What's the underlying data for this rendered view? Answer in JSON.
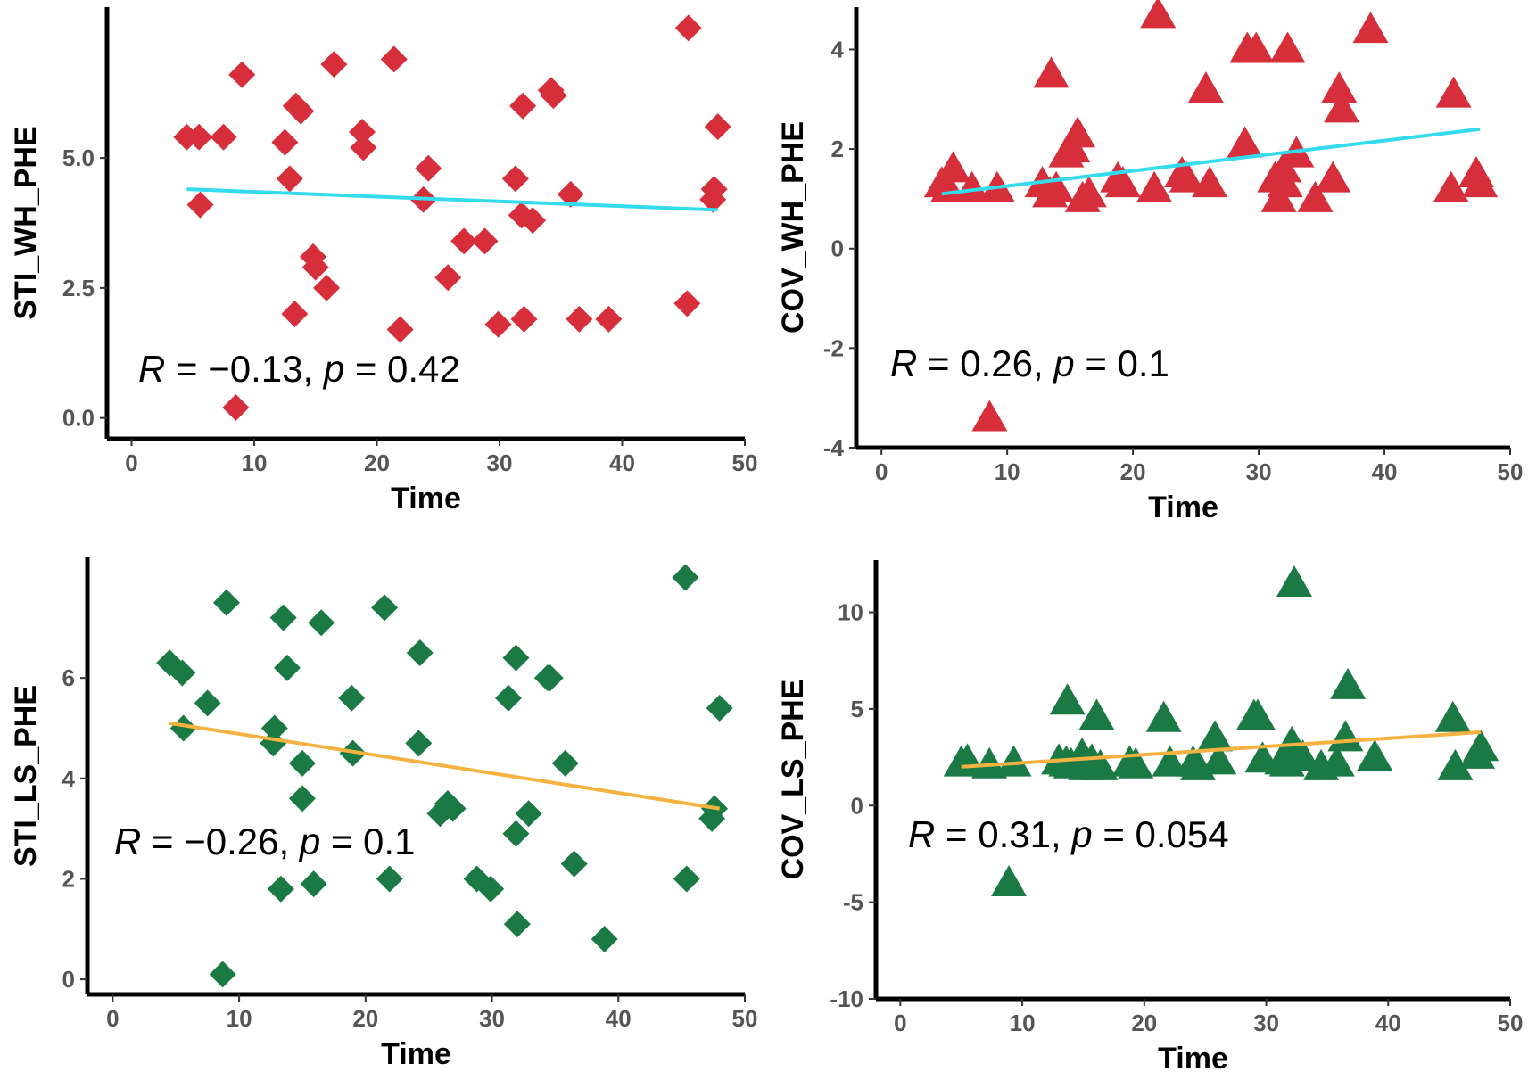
{
  "chart_data": [
    {
      "type": "scatter",
      "panel": "top-left",
      "title": "",
      "xlabel": "Time",
      "ylabel": "STI_WH_PHE",
      "xlim": [
        -2,
        50
      ],
      "ylim": [
        -0.4,
        7.9
      ],
      "xticks": [
        0,
        10,
        20,
        30,
        40,
        50
      ],
      "yticks": [
        0.0,
        2.5,
        5.0
      ],
      "ytick_labels": [
        "0.0",
        "2.5",
        "5.0"
      ],
      "marker": "diamond",
      "point_color": "#d62f3b",
      "line_color": "#33dbec",
      "x": [
        4.5,
        5.5,
        5.6,
        7.5,
        8.5,
        9.0,
        12.5,
        12.9,
        13.3,
        13.4,
        13.8,
        14.8,
        15.0,
        15.9,
        16.5,
        18.8,
        18.9,
        21.4,
        21.9,
        23.8,
        24.2,
        25.8,
        27.1,
        28.8,
        29.9,
        31.3,
        31.8,
        31.9,
        32.0,
        32.7,
        34.2,
        34.4,
        35.8,
        36.5,
        38.9,
        45.3,
        45.4,
        47.4,
        47.5,
        47.8
      ],
      "y": [
        5.4,
        5.4,
        4.1,
        5.4,
        0.2,
        6.6,
        5.3,
        4.6,
        2.0,
        6.0,
        5.9,
        3.1,
        2.9,
        2.5,
        6.8,
        5.5,
        5.2,
        6.9,
        1.7,
        4.2,
        4.8,
        2.7,
        3.4,
        3.4,
        1.8,
        4.6,
        3.9,
        6.0,
        1.9,
        3.8,
        6.3,
        6.2,
        4.3,
        1.9,
        1.9,
        2.2,
        7.5,
        4.2,
        4.4,
        5.6
      ],
      "fit_line": {
        "x": [
          4.5,
          47.8
        ],
        "y": [
          4.4,
          4.0
        ]
      },
      "annotation": {
        "R_label": "R",
        "R_value": " = −0.13, ",
        "p_label": "p",
        "p_value": " = 0.42"
      }
    },
    {
      "type": "scatter",
      "panel": "top-right",
      "title": "",
      "xlabel": "Time",
      "ylabel": "COV_WH_PHE",
      "xlim": [
        -2,
        50
      ],
      "ylim": [
        -4.0,
        4.85
      ],
      "xticks": [
        0,
        10,
        20,
        30,
        40,
        50
      ],
      "yticks": [
        -4,
        -2,
        0,
        2,
        4
      ],
      "ytick_labels": [
        "-4",
        "-2",
        "0",
        "2",
        "4"
      ],
      "marker": "triangle",
      "point_color": "#d62f3b",
      "line_color": "#33dbec",
      "x": [
        4.8,
        5.3,
        5.7,
        7.2,
        8.6,
        9.2,
        12.8,
        13.4,
        13.5,
        13.9,
        14.7,
        15.2,
        15.6,
        16.0,
        16.5,
        18.8,
        19.2,
        21.7,
        22.0,
        23.9,
        24.3,
        25.8,
        26.1,
        28.9,
        29.1,
        29.8,
        31.3,
        31.6,
        32.0,
        32.1,
        32.3,
        33.0,
        34.5,
        35.9,
        36.4,
        36.6,
        38.9,
        45.3,
        45.5,
        47.3,
        47.6
      ],
      "y": [
        1.3,
        1.2,
        1.6,
        1.2,
        -3.4,
        1.2,
        1.3,
        1.1,
        3.5,
        1.2,
        1.9,
        2.0,
        2.3,
        1.0,
        1.1,
        1.4,
        1.3,
        1.2,
        4.7,
        1.5,
        1.4,
        3.2,
        1.3,
        2.1,
        4.0,
        4.0,
        1.4,
        1.0,
        1.6,
        1.3,
        4.0,
        1.9,
        1.0,
        1.4,
        3.2,
        2.8,
        4.4,
        1.2,
        3.1,
        1.5,
        1.3
      ],
      "fit_line": {
        "x": [
          4.8,
          47.6
        ],
        "y": [
          1.1,
          2.4
        ]
      },
      "annotation": {
        "R_label": "R",
        "R_value": " = 0.26, ",
        "p_label": "p",
        "p_value": " = 0.1"
      }
    },
    {
      "type": "scatter",
      "panel": "bottom-left",
      "title": "",
      "xlabel": "Time",
      "ylabel": "STI_LS_PHE",
      "xlim": [
        -2,
        50
      ],
      "ylim": [
        -0.3,
        8.4
      ],
      "xticks": [
        0,
        10,
        20,
        30,
        40,
        50
      ],
      "yticks": [
        0,
        2,
        4,
        6
      ],
      "ytick_labels": [
        "0",
        "2",
        "4",
        "6"
      ],
      "marker": "diamond",
      "point_color": "#1b7a43",
      "line_color": "#f5b240",
      "x": [
        4.5,
        5.5,
        5.6,
        7.5,
        8.7,
        9.0,
        12.7,
        12.8,
        13.3,
        13.5,
        13.8,
        15.0,
        15.0,
        15.9,
        16.5,
        18.9,
        19.0,
        21.5,
        21.9,
        24.2,
        24.3,
        25.9,
        26.5,
        26.9,
        28.8,
        29.9,
        31.3,
        31.9,
        31.9,
        32.0,
        32.9,
        34.4,
        34.6,
        35.8,
        36.5,
        38.9,
        45.3,
        45.4,
        47.4,
        47.6,
        48.0
      ],
      "y": [
        6.3,
        6.1,
        5.0,
        5.5,
        0.1,
        7.5,
        4.7,
        5.0,
        1.8,
        7.2,
        6.2,
        4.3,
        3.6,
        1.9,
        7.1,
        5.6,
        4.5,
        7.4,
        2.0,
        4.7,
        6.5,
        3.3,
        3.5,
        3.4,
        2.0,
        1.8,
        5.6,
        6.4,
        2.9,
        1.1,
        3.3,
        6.0,
        6.0,
        4.3,
        2.3,
        0.8,
        8.0,
        2.0,
        3.2,
        3.4,
        5.4
      ],
      "fit_line": {
        "x": [
          4.5,
          48.0
        ],
        "y": [
          5.1,
          3.4
        ]
      },
      "annotation": {
        "R_label": "R",
        "R_value": " = −0.26, ",
        "p_label": "p",
        "p_value": " = 0.1"
      }
    },
    {
      "type": "scatter",
      "panel": "bottom-right",
      "title": "",
      "xlabel": "Time",
      "ylabel": "COV_LS_PHE",
      "xlim": [
        -2,
        50
      ],
      "ylim": [
        -10.0,
        12.7
      ],
      "xticks": [
        0,
        10,
        20,
        30,
        40,
        50
      ],
      "yticks": [
        -10,
        -5,
        0,
        5,
        10
      ],
      "ytick_labels": [
        "-10",
        "-5",
        "0",
        "5",
        "10"
      ],
      "marker": "triangle",
      "point_color": "#1b7a43",
      "line_color": "#f5b240",
      "x": [
        5.0,
        5.5,
        7.3,
        8.9,
        9.3,
        13.0,
        13.6,
        13.7,
        14.0,
        14.9,
        15.2,
        15.7,
        16.1,
        16.4,
        18.8,
        19.3,
        21.6,
        22.1,
        24.0,
        24.4,
        25.8,
        26.1,
        29.0,
        29.3,
        29.7,
        31.3,
        31.7,
        32.0,
        32.1,
        32.3,
        33.0,
        34.5,
        35.8,
        36.5,
        36.7,
        38.9,
        45.3,
        45.5,
        47.3,
        47.6
      ],
      "y": [
        2.2,
        2.3,
        2.1,
        -4.0,
        2.2,
        2.3,
        2.2,
        5.4,
        2.1,
        2.6,
        2.0,
        2.3,
        4.6,
        2.0,
        2.2,
        2.1,
        4.5,
        2.2,
        2.2,
        2.0,
        3.5,
        2.3,
        4.6,
        4.6,
        2.4,
        2.3,
        2.2,
        3.0,
        3.2,
        11.5,
        2.5,
        2.0,
        2.2,
        3.5,
        6.2,
        2.5,
        4.5,
        2.0,
        2.6,
        3.0
      ],
      "fit_line": {
        "x": [
          5.0,
          47.6
        ],
        "y": [
          2.0,
          3.8
        ]
      },
      "annotation": {
        "R_label": "R",
        "R_value": " = 0.31, ",
        "p_label": "p",
        "p_value": " = 0.054"
      }
    }
  ]
}
